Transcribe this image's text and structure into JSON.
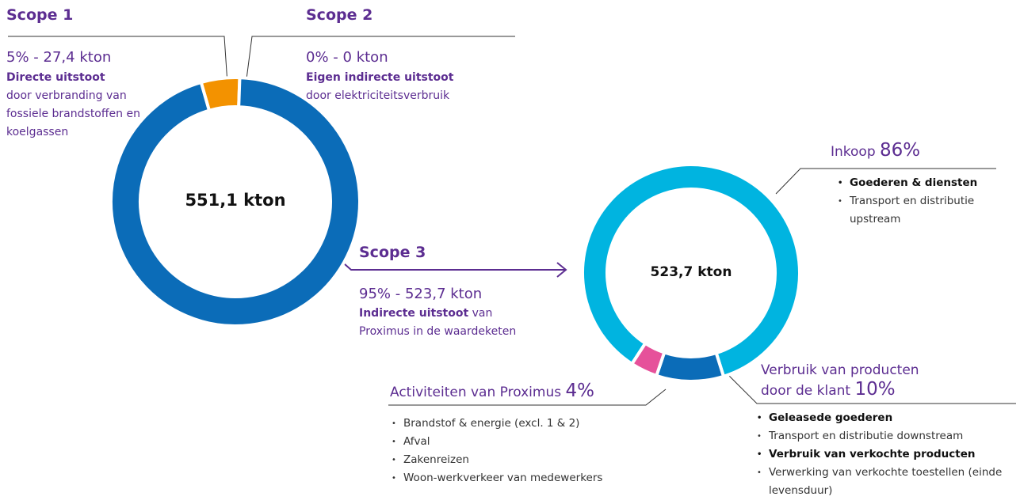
{
  "chart_data": [
    {
      "type": "donut",
      "center_label": "551,1 kton",
      "categories": [
        "Scope 1",
        "Scope 2",
        "Scope 3"
      ],
      "values": [
        5,
        0,
        95
      ],
      "value_labels": [
        "5%",
        "0%",
        "95%"
      ],
      "separator": "-",
      "amounts": [
        "27,4 kton",
        "0 kton",
        "523,7 kton"
      ],
      "headings": [
        "Directe uitstoot",
        "Eigen indirecte uitstoot",
        "Indirecte uitstoot"
      ],
      "descriptions": [
        "door verbranding van fossiele brandstoffen en koelgassen",
        "door elektriciteitsverbruik",
        "van Proximus in de waardeketen"
      ],
      "colors": [
        "#f39200",
        "#7ecbd4",
        "#0b6cb8"
      ]
    },
    {
      "type": "donut",
      "center_label": "523,7 kton",
      "categories": [
        "Inkoop",
        "Verbruik van producten door de klant",
        "Activiteiten van Proximus"
      ],
      "values": [
        86,
        10,
        4
      ],
      "value_labels": [
        "86%",
        "10%",
        "4%"
      ],
      "colors": [
        "#00b4e0",
        "#0b6cb8",
        "#e6519a"
      ],
      "items": [
        [
          {
            "text": "Goederen & diensten",
            "bold": true
          },
          {
            "text": "Transport en distributie upstream",
            "bold": false
          }
        ],
        [
          {
            "text": "Geleasede goederen",
            "bold": true
          },
          {
            "text": "Transport en distributie downstream",
            "bold": false
          },
          {
            "text": "Verbruik van verkochte producten",
            "bold": true
          },
          {
            "text": "Verwerking van verkochte toestellen (einde levensduur)",
            "bold": false
          }
        ],
        [
          {
            "text": "Brandstof & energie (excl. 1 & 2)",
            "bold": false
          },
          {
            "text": "Afval",
            "bold": false
          },
          {
            "text": "Zakenreizen",
            "bold": false
          },
          {
            "text": "Woon-werkverkeer van medewerkers",
            "bold": false
          }
        ]
      ]
    }
  ]
}
